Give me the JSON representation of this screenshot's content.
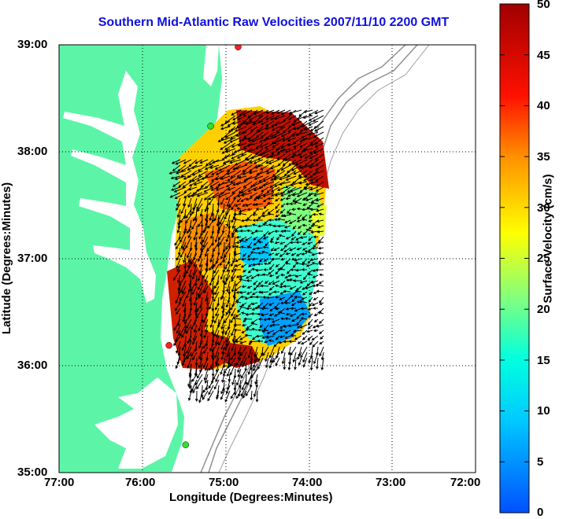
{
  "title": "Southern Mid-Atlantic Raw Velocities 2007/11/10 2200 GMT",
  "x_axis": {
    "label": "Longitude (Degrees:Minutes)",
    "ticks": [
      "77:00",
      "76:00",
      "75:00",
      "74:00",
      "73:00",
      "72:00"
    ]
  },
  "y_axis": {
    "label": "Latitude (Degrees:Minutes)",
    "ticks": [
      "39:00",
      "38:00",
      "37:00",
      "36:00",
      "35:00"
    ]
  },
  "colorbar": {
    "label": "Surface Velocity (cm/s)",
    "ticks": [
      "50",
      "45",
      "40",
      "35",
      "30",
      "25",
      "20",
      "15",
      "10",
      "5",
      "0"
    ],
    "range": [
      0,
      50
    ]
  },
  "map": {
    "lon_range": [
      -77,
      -72
    ],
    "lat_range": [
      35,
      39
    ],
    "grid": "dotted",
    "land_color": "#5cf5a8",
    "water_color": "#ffffff",
    "stations": [
      {
        "lon": -74.85,
        "lat": 38.98,
        "color": "#ff2020"
      },
      {
        "lon": -75.18,
        "lat": 38.24,
        "color": "#30e030"
      },
      {
        "lon": -75.68,
        "lat": 36.19,
        "color": "#ff2020"
      },
      {
        "lon": -75.48,
        "lat": 35.26,
        "color": "#30e030"
      }
    ]
  }
}
